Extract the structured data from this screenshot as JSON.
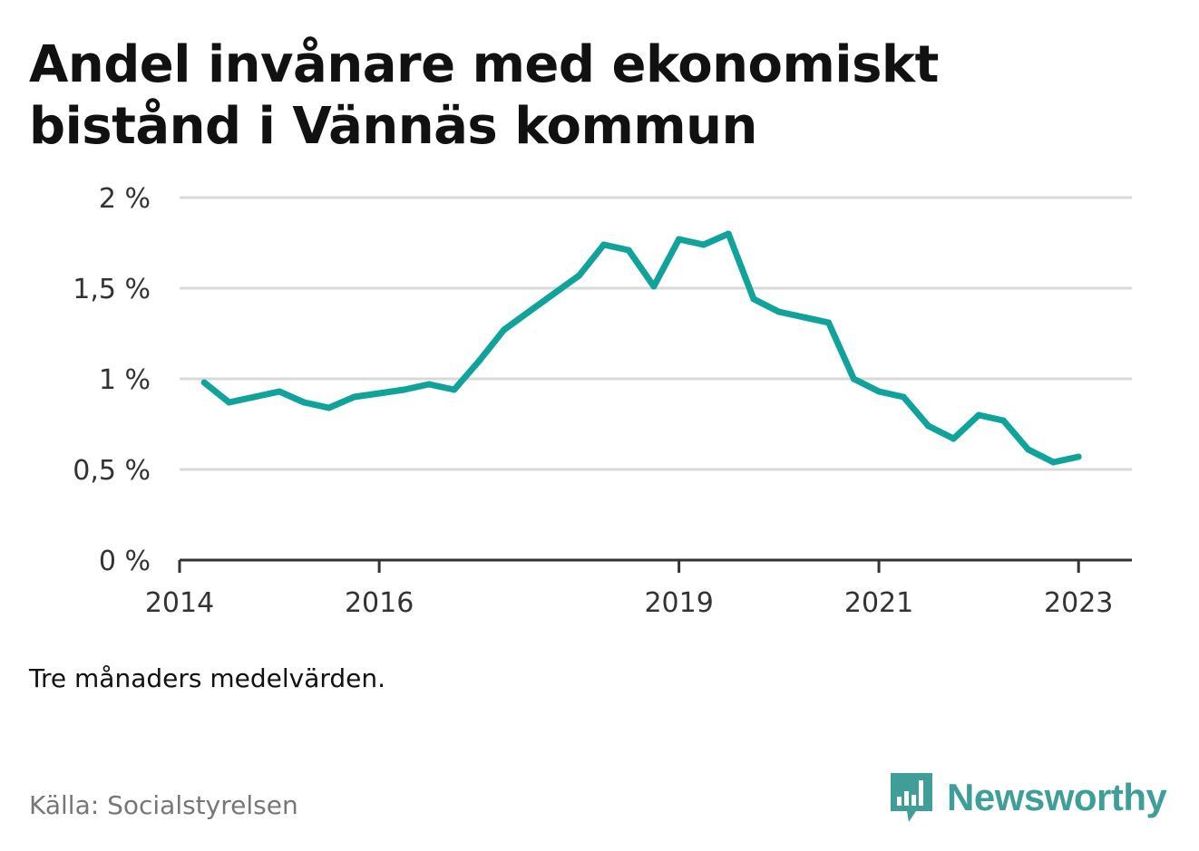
{
  "title": "Andel invånare med ekonomiskt bistånd i Vännäs kommun",
  "note": "Tre månaders medelvärden.",
  "source": "Källa: Socialstyrelsen",
  "logo": {
    "text": "Newsworthy",
    "icon": "bar-chart-speech-bubble-icon",
    "color": "#3f9e97"
  },
  "colors": {
    "line": "#0fa39a",
    "grid": "#d9d9d9",
    "axis": "#333333"
  },
  "chart_data": {
    "type": "line",
    "title": "Andel invånare med ekonomiskt bistånd i Vännäs kommun",
    "xlabel": "",
    "ylabel": "",
    "ylim": [
      0,
      2
    ],
    "yticks": [
      0,
      0.5,
      1,
      1.5,
      2
    ],
    "ytick_labels": [
      "0 %",
      "0,5 %",
      "1 %",
      "1,5 %",
      "2 %"
    ],
    "xlim": [
      "2014-01-01",
      "2023-07-15"
    ],
    "xticks": [
      "2014-01-01",
      "2016-01-01",
      "2019-01-01",
      "2021-01-01",
      "2023-01-01"
    ],
    "xtick_labels": [
      "2014",
      "2016",
      "2019",
      "2021",
      "2023"
    ],
    "grid": true,
    "legend": "none",
    "unit": "%",
    "series": [
      {
        "values": [
          {
            "x": "2014-04",
            "y": 0.98
          },
          {
            "x": "2014-07",
            "y": 0.87
          },
          {
            "x": "2014-10",
            "y": 0.9
          },
          {
            "x": "2015-01",
            "y": 0.93
          },
          {
            "x": "2015-04",
            "y": 0.87
          },
          {
            "x": "2015-07",
            "y": 0.84
          },
          {
            "x": "2015-10",
            "y": 0.9
          },
          {
            "x": "2016-01",
            "y": 0.92
          },
          {
            "x": "2016-04",
            "y": 0.94
          },
          {
            "x": "2016-07",
            "y": 0.97
          },
          {
            "x": "2016-10",
            "y": 0.94
          },
          {
            "x": "2017-01",
            "y": 1.1
          },
          {
            "x": "2017-04",
            "y": 1.27
          },
          {
            "x": "2017-07",
            "y": 1.37
          },
          {
            "x": "2017-10",
            "y": 1.47
          },
          {
            "x": "2018-01",
            "y": 1.57
          },
          {
            "x": "2018-04",
            "y": 1.74
          },
          {
            "x": "2018-07",
            "y": 1.71
          },
          {
            "x": "2018-10",
            "y": 1.51
          },
          {
            "x": "2019-01",
            "y": 1.77
          },
          {
            "x": "2019-04",
            "y": 1.74
          },
          {
            "x": "2019-07",
            "y": 1.8
          },
          {
            "x": "2019-10",
            "y": 1.44
          },
          {
            "x": "2020-01",
            "y": 1.37
          },
          {
            "x": "2020-04",
            "y": 1.34
          },
          {
            "x": "2020-07",
            "y": 1.31
          },
          {
            "x": "2020-10",
            "y": 1.0
          },
          {
            "x": "2021-01",
            "y": 0.93
          },
          {
            "x": "2021-04",
            "y": 0.9
          },
          {
            "x": "2021-07",
            "y": 0.74
          },
          {
            "x": "2021-10",
            "y": 0.67
          },
          {
            "x": "2022-01",
            "y": 0.8
          },
          {
            "x": "2022-04",
            "y": 0.77
          },
          {
            "x": "2022-07",
            "y": 0.61
          },
          {
            "x": "2022-10",
            "y": 0.54
          },
          {
            "x": "2023-01",
            "y": 0.57
          }
        ]
      }
    ]
  }
}
